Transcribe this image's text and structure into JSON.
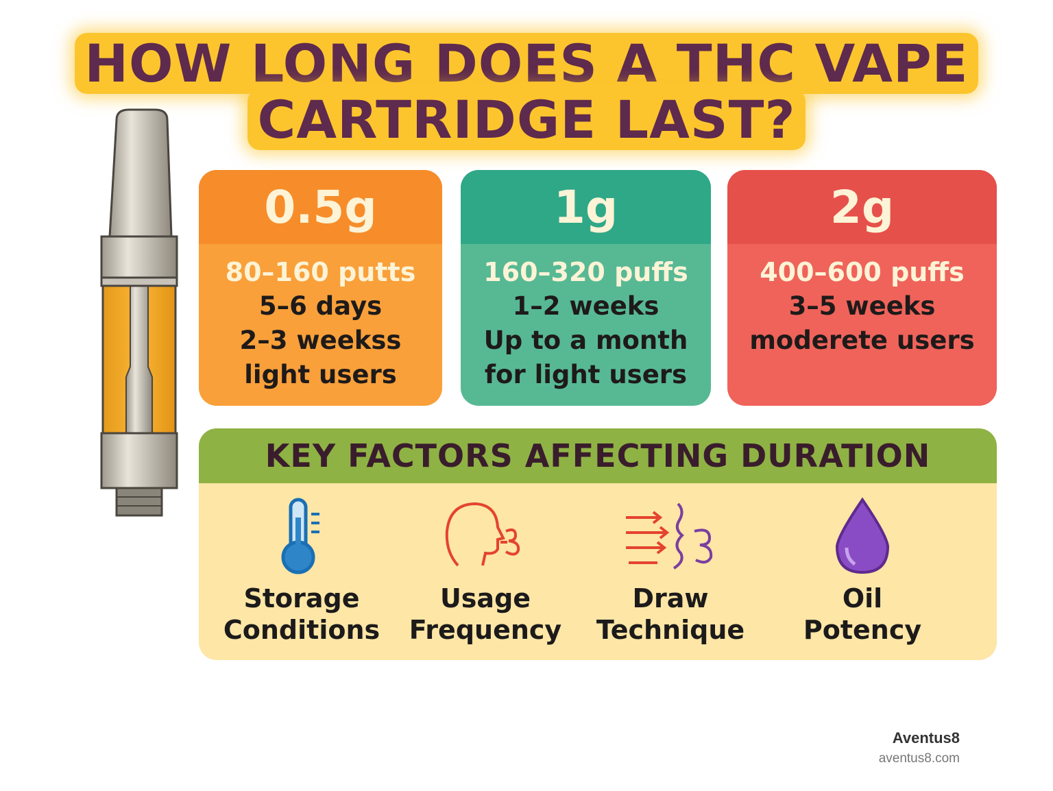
{
  "title": {
    "line1": "HOW LONG DOES A THC VAPE",
    "line2": "CARTRIDGE LAST?"
  },
  "colors": {
    "title_text": "#5e2a4d",
    "title_highlight": "#fcc52e",
    "card_05g": "#f9a03a",
    "card_1g": "#57b994",
    "card_2g": "#ef635a",
    "factors_header": "#8fb244",
    "factors_body": "#fde6a6"
  },
  "cards": [
    {
      "size": "0.5g",
      "puffs": "80–160 putts",
      "lines": [
        "5–6 days",
        "2–3 weekss",
        "light users"
      ]
    },
    {
      "size": "1g",
      "puffs": "160–320 puffs",
      "lines": [
        "1–2 weeks",
        "Up to a month",
        "for light users"
      ]
    },
    {
      "size": "2g",
      "puffs": "400–600 puffs",
      "lines": [
        "3–5 weeks",
        "moderete users"
      ]
    }
  ],
  "factors": {
    "heading": "KEY FACTORS AFFECTING DURATION",
    "items": [
      {
        "icon": "thermometer-icon",
        "line1": "Storage",
        "line2": "Conditions"
      },
      {
        "icon": "head-breath-icon",
        "line1": "Usage",
        "line2": "Frequency"
      },
      {
        "icon": "airflow-icon",
        "line1": "Draw",
        "line2": "Technique"
      },
      {
        "icon": "oil-drop-icon",
        "line1": "Oil",
        "line2": "Potency"
      }
    ]
  },
  "brand": {
    "name": "Aventus8",
    "url": "aventus8.com"
  }
}
